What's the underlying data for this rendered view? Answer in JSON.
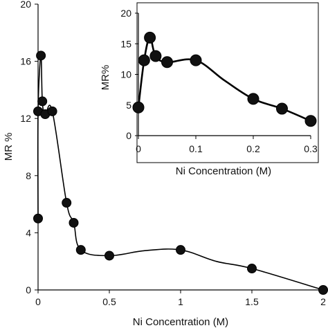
{
  "chart_data": [
    {
      "type": "scatter",
      "xlabel": "Ni Concentration (M)",
      "ylabel": "MR %",
      "xlim": [
        0,
        2
      ],
      "ylim": [
        0,
        20
      ],
      "xticks": [
        "0",
        "0.5",
        "1",
        "1.5",
        "2"
      ],
      "yticks": [
        "0",
        "4",
        "8",
        "12",
        "16",
        "20"
      ],
      "grid": false,
      "legend": "none",
      "points": [
        {
          "x": 0,
          "y": 5.0
        },
        {
          "x": 0,
          "y": 12.5
        },
        {
          "x": 0.02,
          "y": 16.4
        },
        {
          "x": 0.03,
          "y": 13.2
        },
        {
          "x": 0.05,
          "y": 12.3
        },
        {
          "x": 0.1,
          "y": 12.5
        },
        {
          "x": 0.2,
          "y": 6.1
        },
        {
          "x": 0.25,
          "y": 4.7
        },
        {
          "x": 0.3,
          "y": 2.8
        },
        {
          "x": 0.5,
          "y": 2.4
        },
        {
          "x": 1.0,
          "y": 2.8
        },
        {
          "x": 1.5,
          "y": 1.5
        },
        {
          "x": 2.0,
          "y": 0.0
        }
      ],
      "curve": [
        [
          0,
          5.0
        ],
        [
          0,
          12.5
        ],
        [
          0.02,
          16.4
        ],
        [
          0.03,
          13.2
        ],
        [
          0.05,
          12.3
        ],
        [
          0.1,
          12.5
        ],
        [
          0.2,
          6.1
        ],
        [
          0.25,
          4.7
        ],
        [
          0.3,
          2.8
        ],
        [
          0.5,
          2.4
        ],
        [
          0.75,
          2.75
        ],
        [
          1.0,
          2.8
        ],
        [
          1.25,
          2.0
        ],
        [
          1.5,
          1.5
        ],
        [
          2.0,
          0.0
        ]
      ]
    },
    {
      "type": "scatter",
      "xlabel": "Ni Concentration (M)",
      "ylabel": "MR%",
      "xlim": [
        0,
        0.3
      ],
      "ylim": [
        0,
        20
      ],
      "xticks": [
        "0",
        "0.1",
        "0.2",
        "0.3"
      ],
      "yticks": [
        "0",
        "5",
        "10",
        "15",
        "20"
      ],
      "grid": false,
      "legend": "none",
      "points": [
        {
          "x": 0,
          "y": 4.6
        },
        {
          "x": 0.01,
          "y": 12.3
        },
        {
          "x": 0.02,
          "y": 16.0
        },
        {
          "x": 0.03,
          "y": 13.0
        },
        {
          "x": 0.05,
          "y": 12.0
        },
        {
          "x": 0.1,
          "y": 12.3
        },
        {
          "x": 0.2,
          "y": 6.0
        },
        {
          "x": 0.25,
          "y": 4.4
        },
        {
          "x": 0.3,
          "y": 2.4
        }
      ],
      "curve": [
        [
          0,
          4.6
        ],
        [
          0.01,
          12.3
        ],
        [
          0.02,
          16.0
        ],
        [
          0.03,
          13.0
        ],
        [
          0.05,
          12.0
        ],
        [
          0.1,
          12.3
        ],
        [
          0.15,
          9.0
        ],
        [
          0.2,
          6.0
        ],
        [
          0.25,
          4.4
        ],
        [
          0.3,
          2.4
        ]
      ]
    }
  ]
}
